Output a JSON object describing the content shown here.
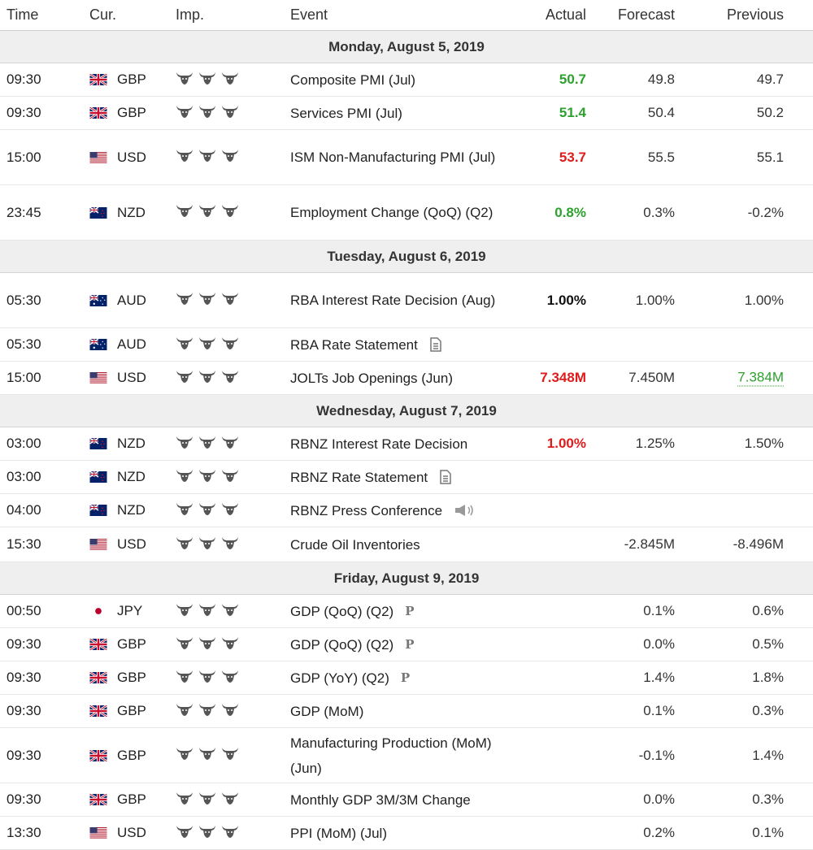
{
  "header": {
    "time": "Time",
    "cur": "Cur.",
    "imp": "Imp.",
    "event": "Event",
    "actual": "Actual",
    "forecast": "Forecast",
    "previous": "Previous"
  },
  "colors": {
    "green": "#2da12d",
    "red": "#e01b1b",
    "day_bg": "#efefef"
  },
  "days": [
    {
      "label": "Monday, August 5, 2019",
      "rows": [
        {
          "time": "09:30",
          "cur": "GBP",
          "flag": "gb",
          "event": "Composite PMI (Jul)",
          "actual": "50.7",
          "actual_color": "green",
          "forecast": "49.8",
          "previous": "49.7",
          "h": 41
        },
        {
          "time": "09:30",
          "cur": "GBP",
          "flag": "gb",
          "event": "Services PMI (Jul)",
          "actual": "51.4",
          "actual_color": "green",
          "forecast": "50.4",
          "previous": "50.2",
          "h": 41
        },
        {
          "time": "15:00",
          "cur": "USD",
          "flag": "us",
          "event": "ISM Non-Manufacturing PMI (Jul)",
          "actual": "53.7",
          "actual_color": "red",
          "forecast": "55.5",
          "previous": "55.1",
          "h": 68
        },
        {
          "time": "23:45",
          "cur": "NZD",
          "flag": "nz",
          "event": "Employment Change (QoQ) (Q2)",
          "actual": "0.8%",
          "actual_color": "green",
          "forecast": "0.3%",
          "previous": "-0.2%",
          "h": 68
        }
      ]
    },
    {
      "label": "Tuesday, August 6, 2019",
      "rows": [
        {
          "time": "05:30",
          "cur": "AUD",
          "flag": "au",
          "event": "RBA Interest Rate Decision (Aug)",
          "actual": "1.00%",
          "actual_color": "black",
          "forecast": "1.00%",
          "previous": "1.00%",
          "h": 68
        },
        {
          "time": "05:30",
          "cur": "AUD",
          "flag": "au",
          "event": "RBA Rate Statement",
          "icon": "document-icon",
          "actual": "",
          "forecast": "",
          "previous": "",
          "h": 41
        },
        {
          "time": "15:00",
          "cur": "USD",
          "flag": "us",
          "event": "JOLTs Job Openings (Jun)",
          "actual": "7.348M",
          "actual_color": "red",
          "forecast": "7.450M",
          "previous": "7.384M",
          "previous_color": "green",
          "h": 41
        }
      ]
    },
    {
      "label": "Wednesday, August 7, 2019",
      "rows": [
        {
          "time": "03:00",
          "cur": "NZD",
          "flag": "nz",
          "event": "RBNZ Interest Rate Decision",
          "actual": "1.00%",
          "actual_color": "red",
          "forecast": "1.25%",
          "previous": "1.50%",
          "h": 41
        },
        {
          "time": "03:00",
          "cur": "NZD",
          "flag": "nz",
          "event": "RBNZ Rate Statement",
          "icon": "document-icon",
          "actual": "",
          "forecast": "",
          "previous": "",
          "h": 41
        },
        {
          "time": "04:00",
          "cur": "NZD",
          "flag": "nz",
          "event": "RBNZ Press Conference",
          "icon": "speaker-icon",
          "actual": "",
          "forecast": "",
          "previous": "",
          "h": 41
        },
        {
          "time": "15:30",
          "cur": "USD",
          "flag": "us",
          "event": "Crude Oil Inventories",
          "actual": "",
          "forecast": "-2.845M",
          "previous": "-8.496M",
          "h": 43
        }
      ]
    },
    {
      "label": "Friday, August 9, 2019",
      "rows": [
        {
          "time": "00:50",
          "cur": "JPY",
          "flag": "jp",
          "event": "GDP (QoQ) (Q2)",
          "icon": "preliminary-icon",
          "actual": "",
          "forecast": "0.1%",
          "previous": "0.6%",
          "h": 41
        },
        {
          "time": "09:30",
          "cur": "GBP",
          "flag": "gb",
          "event": "GDP (QoQ) (Q2)",
          "icon": "preliminary-icon",
          "actual": "",
          "forecast": "0.0%",
          "previous": "0.5%",
          "h": 41
        },
        {
          "time": "09:30",
          "cur": "GBP",
          "flag": "gb",
          "event": "GDP (YoY) (Q2)",
          "icon": "preliminary-icon",
          "actual": "",
          "forecast": "1.4%",
          "previous": "1.8%",
          "h": 41
        },
        {
          "time": "09:30",
          "cur": "GBP",
          "flag": "gb",
          "event": "GDP (MoM)",
          "actual": "",
          "forecast": "0.1%",
          "previous": "0.3%",
          "h": 41
        },
        {
          "time": "09:30",
          "cur": "GBP",
          "flag": "gb",
          "event": "Manufacturing Production (MoM) (Jun)",
          "actual": "",
          "forecast": "-0.1%",
          "previous": "1.4%",
          "h": 68
        },
        {
          "time": "09:30",
          "cur": "GBP",
          "flag": "gb",
          "event": "Monthly GDP 3M/3M Change",
          "actual": "",
          "forecast": "0.0%",
          "previous": "0.3%",
          "h": 41
        },
        {
          "time": "13:30",
          "cur": "USD",
          "flag": "us",
          "event": "PPI (MoM) (Jul)",
          "actual": "",
          "forecast": "0.2%",
          "previous": "0.1%",
          "h": 41
        }
      ]
    }
  ]
}
